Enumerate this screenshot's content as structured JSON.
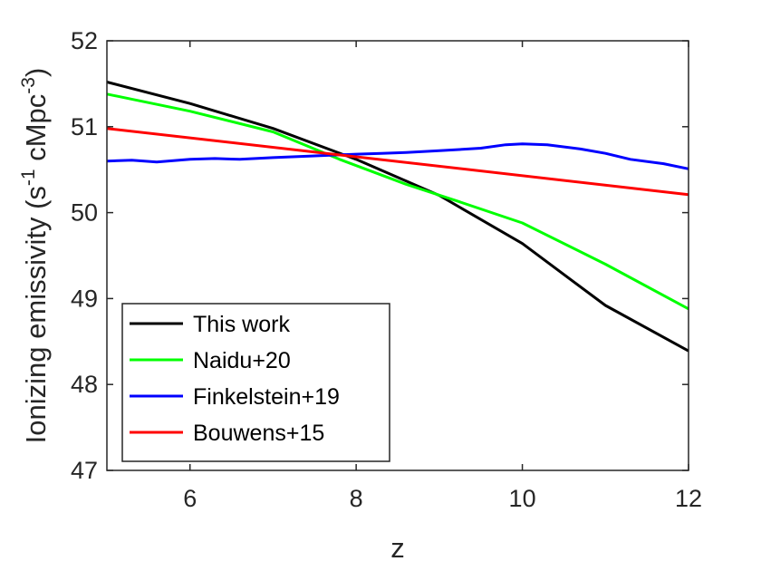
{
  "chart_data": {
    "type": "line",
    "xlabel": "z",
    "ylabel": {
      "prefix": "Ionizing emissivity (s",
      "sup1": "-1",
      "middle": " cMpc",
      "sup2": "-3",
      "suffix": ")"
    },
    "xlim": [
      5,
      12
    ],
    "ylim": [
      47,
      52
    ],
    "xticks": [
      6,
      8,
      10,
      12
    ],
    "yticks": [
      47,
      48,
      49,
      50,
      51,
      52
    ],
    "grid": false,
    "legend_position": "bottom-left",
    "series": [
      {
        "name": "This work",
        "color": "#000000",
        "x": [
          5,
          6,
          7,
          8,
          9,
          10,
          11,
          12
        ],
        "y": [
          51.52,
          51.27,
          50.98,
          50.62,
          50.2,
          49.64,
          48.92,
          48.39
        ]
      },
      {
        "name": "Naidu+20",
        "color": "#00ff00",
        "x": [
          5,
          6,
          7,
          7.8,
          8.6,
          9.2,
          10,
          11,
          12
        ],
        "y": [
          51.38,
          51.18,
          50.94,
          50.62,
          50.33,
          50.14,
          49.88,
          49.4,
          48.88
        ]
      },
      {
        "name": "Finkelstein+19",
        "color": "#0000ff",
        "x": [
          5,
          5.3,
          5.6,
          6,
          6.3,
          6.6,
          7,
          7.5,
          8,
          8.3,
          8.6,
          9,
          9.5,
          9.8,
          10,
          10.3,
          10.7,
          11,
          11.3,
          11.7,
          12
        ],
        "y": [
          50.6,
          50.61,
          50.59,
          50.62,
          50.63,
          50.62,
          50.64,
          50.66,
          50.68,
          50.69,
          50.7,
          50.72,
          50.75,
          50.79,
          50.8,
          50.79,
          50.74,
          50.69,
          50.62,
          50.57,
          50.51
        ]
      },
      {
        "name": "Bouwens+15",
        "color": "#ff0000",
        "x": [
          5,
          12
        ],
        "y": [
          50.98,
          50.21
        ]
      }
    ]
  }
}
